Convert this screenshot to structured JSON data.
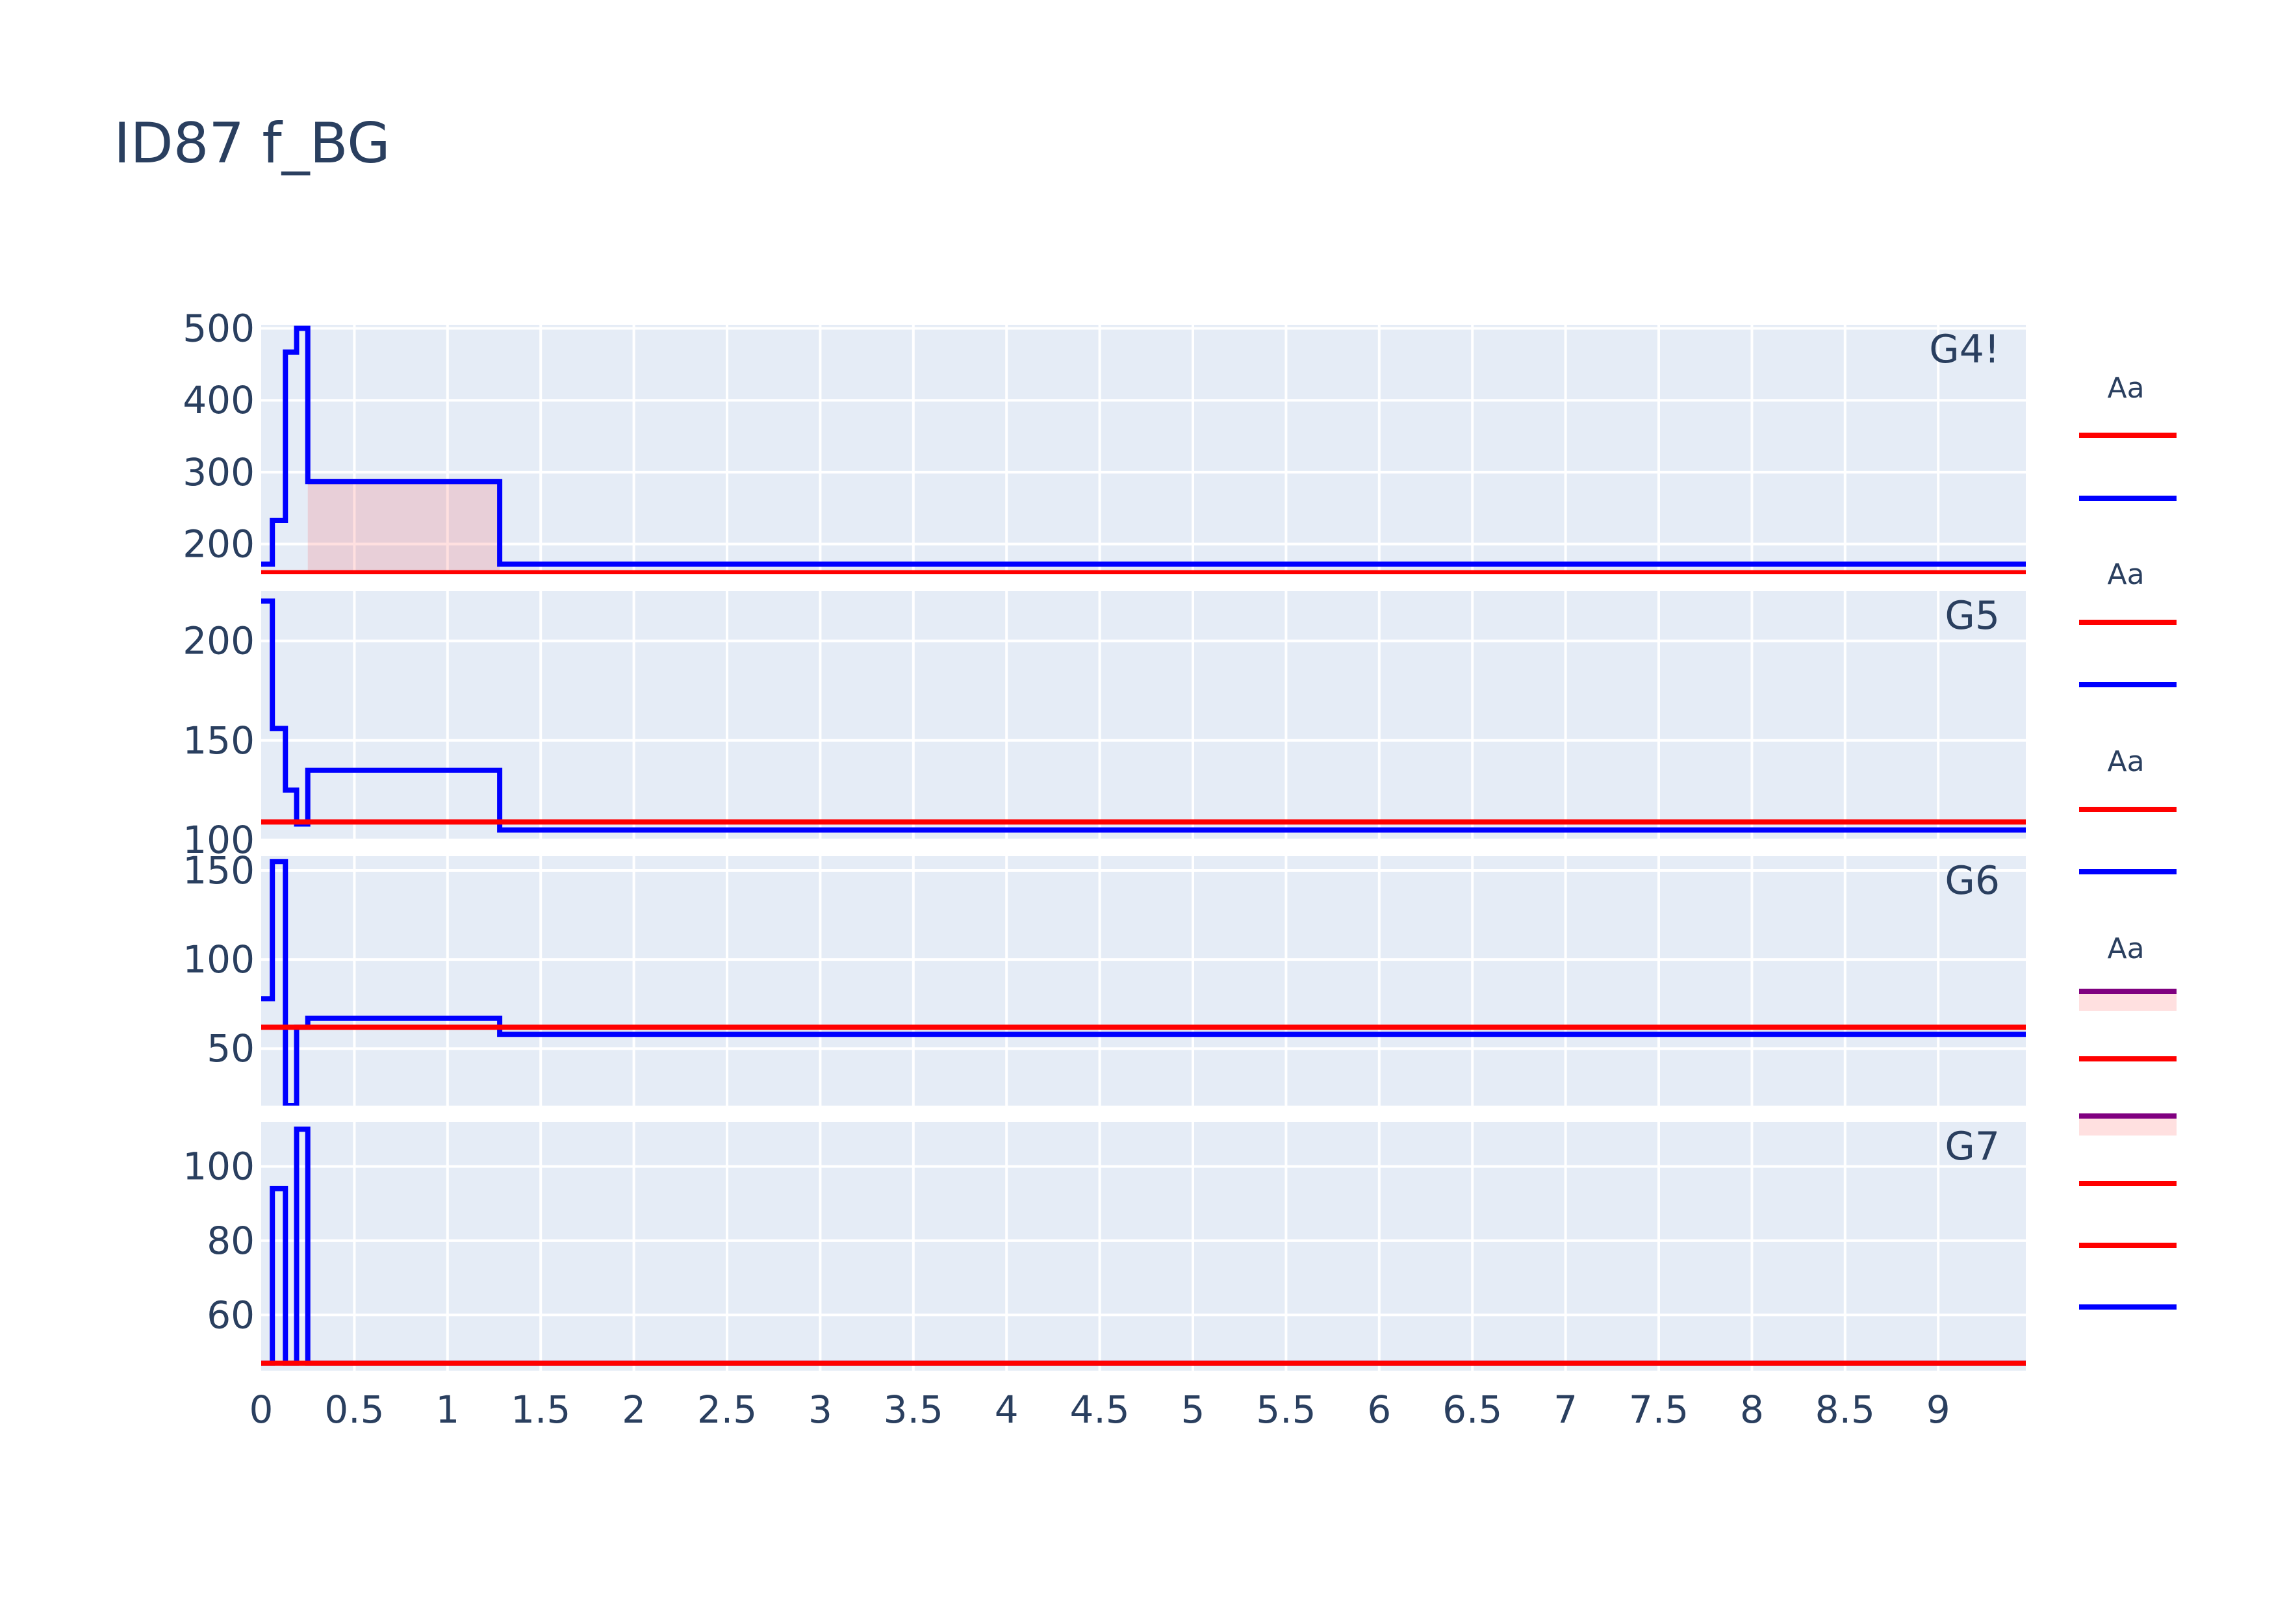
{
  "title": "ID87 f_BG",
  "colors": {
    "plot_bg": "#e5ecf6",
    "grid": "#ffffff",
    "text": "#2a3f5f",
    "red": "#ff0000",
    "blue": "#0000ff",
    "purple": "#800080",
    "fill": "rgba(255,0,0,0.12)"
  },
  "chart_data": {
    "type": "line",
    "line_shape": "step",
    "xlim": [
      0,
      9.47
    ],
    "x_ticks": [
      "0",
      "0.5",
      "1",
      "1.5",
      "2",
      "2.5",
      "3",
      "3.5",
      "4",
      "4.5",
      "5",
      "5.5",
      "6",
      "6.5",
      "7",
      "7.5",
      "8",
      "8.5",
      "9"
    ],
    "x_tick_values": [
      0,
      0.5,
      1,
      1.5,
      2,
      2.5,
      3,
      3.5,
      4,
      4.5,
      5,
      5.5,
      6,
      6.5,
      7,
      7.5,
      8,
      8.5,
      9
    ],
    "grid": true,
    "legend_placement": "right",
    "legend_groups": [
      {
        "title": "Aa",
        "items": [
          {
            "color": "red"
          },
          {
            "color": "blue"
          }
        ]
      },
      {
        "title": "Aa",
        "items": [
          {
            "color": "red"
          },
          {
            "color": "blue"
          }
        ]
      },
      {
        "title": "Aa",
        "items": [
          {
            "color": "red"
          },
          {
            "color": "blue"
          }
        ]
      },
      {
        "title": "Aa",
        "items": [
          {
            "color": "purple",
            "fill": true
          },
          {
            "color": "red"
          },
          {
            "color": "purple",
            "fill": true
          },
          {
            "color": "red"
          },
          {
            "color": "red"
          },
          {
            "color": "blue"
          }
        ]
      }
    ],
    "panels": [
      {
        "label": "G4!",
        "ylim": [
          158,
          505
        ],
        "y_ticks": [
          "200",
          "300",
          "400",
          "500"
        ],
        "y_tick_values": [
          200,
          300,
          400,
          500
        ],
        "series": [
          {
            "color": "purple",
            "fill_to": 160,
            "x": [
              0.25,
              1.28
            ],
            "y": [
              287,
              287
            ]
          },
          {
            "color": "red",
            "x": [
              0,
              9.47
            ],
            "y": [
              160,
              160
            ]
          },
          {
            "color": "blue",
            "x": [
              0,
              0.06,
              0.13,
              0.19,
              0.25,
              1.28,
              9.47
            ],
            "y": [
              172,
              233,
              467,
              500,
              287,
              172,
              172
            ]
          }
        ]
      },
      {
        "label": "G5",
        "ylim": [
          100,
          225
        ],
        "y_ticks": [
          "100",
          "150",
          "200"
        ],
        "y_tick_values": [
          100,
          150,
          200
        ],
        "series": [
          {
            "color": "blue",
            "x": [
              0,
              0.06,
              0.13,
              0.19,
              0.25,
              1.28,
              9.47
            ],
            "y": [
              220,
              156,
              125,
              108,
              135,
              105,
              105
            ]
          },
          {
            "color": "red",
            "x": [
              0,
              9.47
            ],
            "y": [
              109,
              109
            ]
          }
        ]
      },
      {
        "label": "G6",
        "ylim": [
          18,
          158
        ],
        "y_ticks": [
          "50",
          "100",
          "150"
        ],
        "y_tick_values": [
          50,
          100,
          150
        ],
        "series": [
          {
            "color": "blue",
            "x": [
              0,
              0.06,
              0.13,
              0.19,
              0.25,
              1.28,
              9.47
            ],
            "y": [
              78,
              155,
              18,
              62,
              67,
              58,
              58
            ]
          },
          {
            "color": "red",
            "x": [
              0,
              9.47
            ],
            "y": [
              62,
              62
            ]
          }
        ]
      },
      {
        "label": "G7",
        "ylim": [
          45,
          112
        ],
        "y_ticks": [
          "60",
          "80",
          "100"
        ],
        "y_tick_values": [
          60,
          80,
          100
        ],
        "series": [
          {
            "color": "blue",
            "x": [
              0,
              0.06,
              0.13,
              0.19,
              0.25,
              1.28,
              9.47
            ],
            "y": [
              47,
              94,
              47,
              110,
              47,
              47,
              47
            ]
          },
          {
            "color": "red",
            "x": [
              0,
              9.47
            ],
            "y": [
              47,
              47
            ]
          }
        ]
      }
    ]
  }
}
